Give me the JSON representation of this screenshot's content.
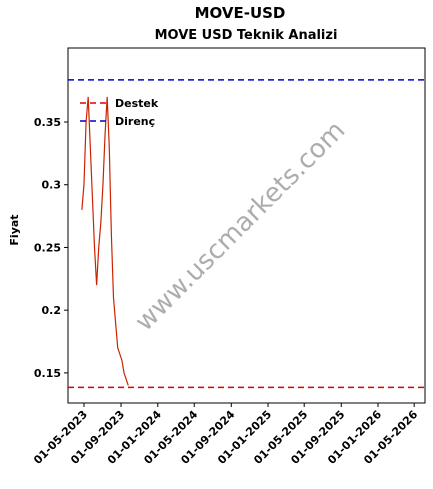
{
  "chart_data": {
    "type": "line",
    "title": "MOVE-USD",
    "subtitle": "MOVE USD Teknik Analizi",
    "y_label": "Fiyat",
    "watermark": "www.uscmarkets.com",
    "x": [
      "2023-04-24",
      "2023-05-01",
      "2023-05-08",
      "2023-05-15",
      "2023-05-22",
      "2023-05-29",
      "2023-06-05",
      "2023-06-12",
      "2023-06-19",
      "2023-06-26",
      "2023-07-03",
      "2023-07-10",
      "2023-07-17",
      "2023-07-24",
      "2023-07-31",
      "2023-08-07",
      "2023-08-14",
      "2023-08-21",
      "2023-08-28",
      "2023-09-04",
      "2023-09-11",
      "2023-09-18",
      "2023-09-25"
    ],
    "series": [
      {
        "name": "MOVE-USD",
        "color": "#cc2200",
        "values": [
          0.28,
          0.3,
          0.35,
          0.37,
          0.33,
          0.29,
          0.25,
          0.22,
          0.25,
          0.27,
          0.3,
          0.34,
          0.37,
          0.33,
          0.26,
          0.21,
          0.19,
          0.17,
          0.165,
          0.16,
          0.15,
          0.145,
          0.14
        ]
      }
    ],
    "levels": [
      {
        "name": "Destek",
        "color": "#dd0000",
        "value": 0.1385
      },
      {
        "name": "Direnç",
        "color": "#0000cc",
        "value": 0.3836
      }
    ],
    "xlim": [
      "2023-03-09",
      "2026-06-06"
    ],
    "ylim": [
      0.126,
      0.409
    ],
    "yticks": [
      0.15,
      0.2,
      0.25,
      0.3,
      0.35
    ],
    "xticks": [
      {
        "value": "2023-05-01",
        "label": "01-05-2023"
      },
      {
        "value": "2023-09-01",
        "label": "01-09-2023"
      },
      {
        "value": "2024-01-01",
        "label": "01-01-2024"
      },
      {
        "value": "2024-05-01",
        "label": "01-05-2024"
      },
      {
        "value": "2024-09-01",
        "label": "01-09-2024"
      },
      {
        "value": "2025-01-01",
        "label": "01-01-2025"
      },
      {
        "value": "2025-05-01",
        "label": "01-05-2025"
      },
      {
        "value": "2025-09-01",
        "label": "01-09-2025"
      },
      {
        "value": "2026-01-01",
        "label": "01-01-2026"
      },
      {
        "value": "2026-05-01",
        "label": "01-05-2026"
      }
    ]
  }
}
